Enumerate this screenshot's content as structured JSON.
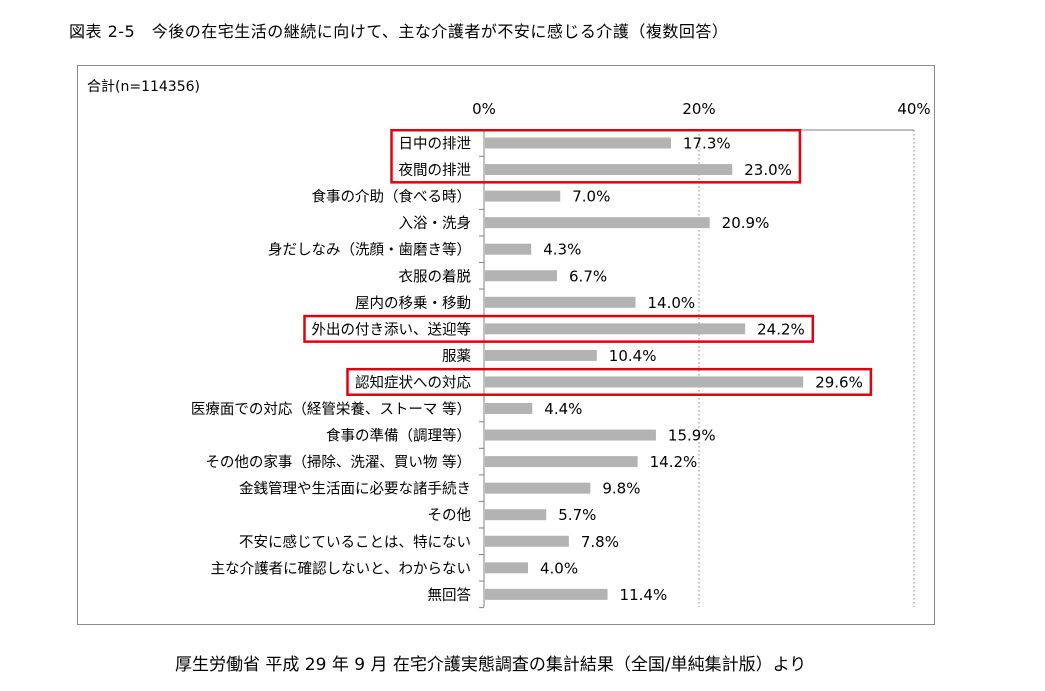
{
  "figure_title": "図表 2-5　今後の在宅生活の継続に向けて、主な介護者が不安に感じる介護（複数回答）",
  "source_note": "厚生労働省 平成 29 年 9 月 在宅介護実態調査の集計結果（全国/単純集計版）より",
  "colors": {
    "bar": "#b3b3b3",
    "highlight": "#e3000f",
    "axis": "#808080",
    "gridline": "#808080"
  },
  "chart_data": {
    "type": "bar",
    "orientation": "horizontal",
    "title": "合計(n=114356)",
    "xlim": [
      0,
      40
    ],
    "x_ticks": [
      "0%",
      "20%",
      "40%"
    ],
    "grid": "dotted vertical at 20% and 40%",
    "categories": [
      "日中の排泄",
      "夜間の排泄",
      "食事の介助（食べる時）",
      "入浴・洗身",
      "身だしなみ（洗顔・歯磨き等）",
      "衣服の着脱",
      "屋内の移乗・移動",
      "外出の付き添い、送迎等",
      "服薬",
      "認知症状への対応",
      "医療面での対応（経管栄養、ストーマ 等）",
      "食事の準備（調理等）",
      "その他の家事（掃除、洗濯、買い物 等）",
      "金銭管理や生活面に必要な諸手続き",
      "その他",
      "不安に感じていることは、特にない",
      "主な介護者に確認しないと、わからない",
      "無回答"
    ],
    "values": [
      17.3,
      23.0,
      7.0,
      20.9,
      4.3,
      6.7,
      14.0,
      24.2,
      10.4,
      29.6,
      4.4,
      15.9,
      14.2,
      9.8,
      5.7,
      7.8,
      4.0,
      11.4
    ],
    "value_labels": [
      "17.3%",
      "23.0%",
      "7.0%",
      "20.9%",
      "4.3%",
      "6.7%",
      "14.0%",
      "24.2%",
      "10.4%",
      "29.6%",
      "4.4%",
      "15.9%",
      "14.2%",
      "9.8%",
      "5.7%",
      "7.8%",
      "4.0%",
      "11.4%"
    ],
    "highlight_groups": [
      [
        0,
        1
      ],
      [
        7
      ],
      [
        9
      ]
    ]
  }
}
